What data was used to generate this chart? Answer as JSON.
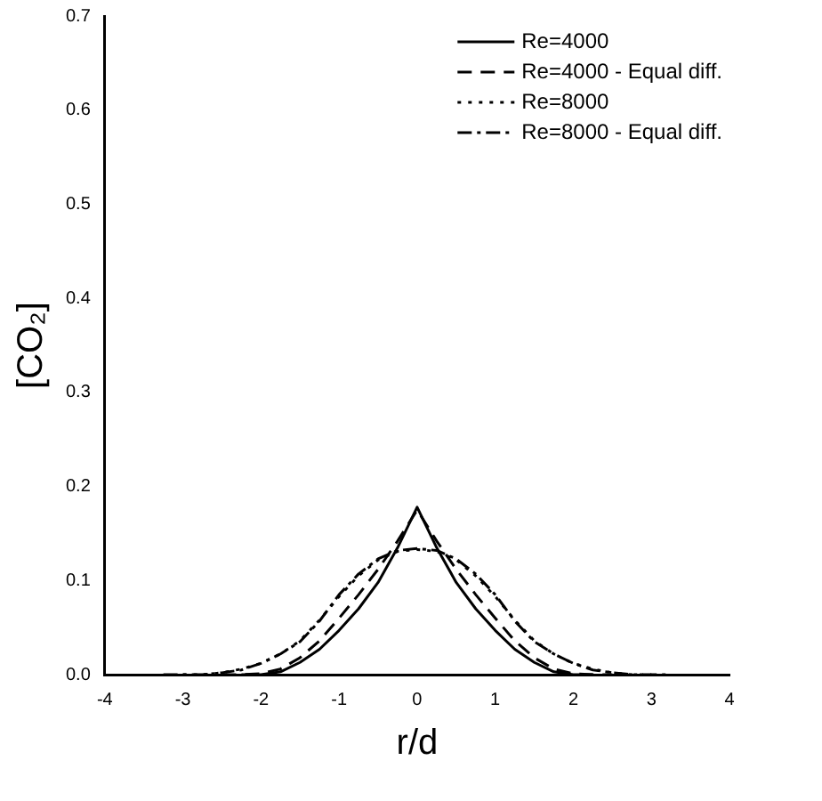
{
  "chart_data": {
    "type": "line",
    "xlabel": "r/d",
    "ylabel": "[CO₂]",
    "xlim": [
      -4,
      4
    ],
    "xticks": [
      -4,
      -3,
      -2,
      -1,
      0,
      1,
      2,
      3,
      4
    ],
    "ylim": [
      0,
      0.7
    ],
    "yticks": [
      {
        "value": 0,
        "label": "0.0"
      },
      0.1,
      0.2,
      0.3,
      0.4,
      0.5,
      0.6,
      0.7
    ],
    "grid": false,
    "legend": "top right",
    "marker": "none",
    "series": [
      {
        "name": "Re=4000",
        "color": "#000000",
        "line_style": "solid",
        "x": [
          -2.25,
          -2,
          -1.75,
          -1.5,
          -1.25,
          -1,
          -0.75,
          -0.5,
          -0.25,
          0,
          0.25,
          0.5,
          0.75,
          1,
          1.25,
          1.5,
          1.75,
          2,
          2.25
        ],
        "values": [
          0,
          0,
          0.003,
          0.013,
          0.027,
          0.047,
          0.07,
          0.098,
          0.135,
          0.178,
          0.135,
          0.098,
          0.07,
          0.047,
          0.027,
          0.013,
          0.003,
          0,
          0
        ]
      },
      {
        "name": "Re=4000 - Equal diff.",
        "color": "#000000",
        "line_style": "dashed",
        "x": [
          -2.5,
          -2.25,
          -2,
          -1.75,
          -1.5,
          -1.25,
          -1,
          -0.75,
          -0.5,
          -0.25,
          0,
          0.25,
          0.5,
          0.75,
          1,
          1.25,
          1.5,
          1.75,
          2,
          2.25,
          2.5
        ],
        "values": [
          0,
          0,
          0.001,
          0.006,
          0.018,
          0.036,
          0.06,
          0.085,
          0.112,
          0.142,
          0.175,
          0.142,
          0.112,
          0.085,
          0.06,
          0.036,
          0.018,
          0.006,
          0.001,
          0,
          0
        ]
      },
      {
        "name": "Re=8000",
        "color": "#000000",
        "line_style": "dotted",
        "x": [
          -3,
          -2.75,
          -2.5,
          -2.25,
          -2,
          -1.75,
          -1.5,
          -1.25,
          -1,
          -0.75,
          -0.5,
          -0.25,
          0,
          0.25,
          0.5,
          0.75,
          1,
          1.25,
          1.5,
          1.75,
          2,
          2.25,
          2.5,
          2.75,
          3
        ],
        "values": [
          0,
          0,
          0.002,
          0.006,
          0.012,
          0.022,
          0.036,
          0.058,
          0.083,
          0.105,
          0.122,
          0.131,
          0.133,
          0.131,
          0.122,
          0.105,
          0.083,
          0.058,
          0.036,
          0.022,
          0.012,
          0.006,
          0.002,
          0,
          0
        ]
      },
      {
        "name": "Re=8000 - Equal diff.",
        "color": "#000000",
        "line_style": "dashdot",
        "x": [
          -3.25,
          -3,
          -2.75,
          -2.5,
          -2.25,
          -2,
          -1.75,
          -1.5,
          -1.25,
          -1,
          -0.75,
          -0.5,
          -0.25,
          0,
          0.25,
          0.5,
          0.75,
          1,
          1.25,
          1.5,
          1.75,
          2,
          2.25,
          2.5,
          2.75,
          3,
          3.25
        ],
        "values": [
          0,
          0,
          0,
          0.002,
          0.005,
          0.012,
          0.022,
          0.035,
          0.057,
          0.085,
          0.107,
          0.123,
          0.132,
          0.134,
          0.132,
          0.123,
          0.107,
          0.085,
          0.057,
          0.035,
          0.022,
          0.012,
          0.005,
          0.002,
          0,
          0,
          0
        ]
      }
    ]
  }
}
